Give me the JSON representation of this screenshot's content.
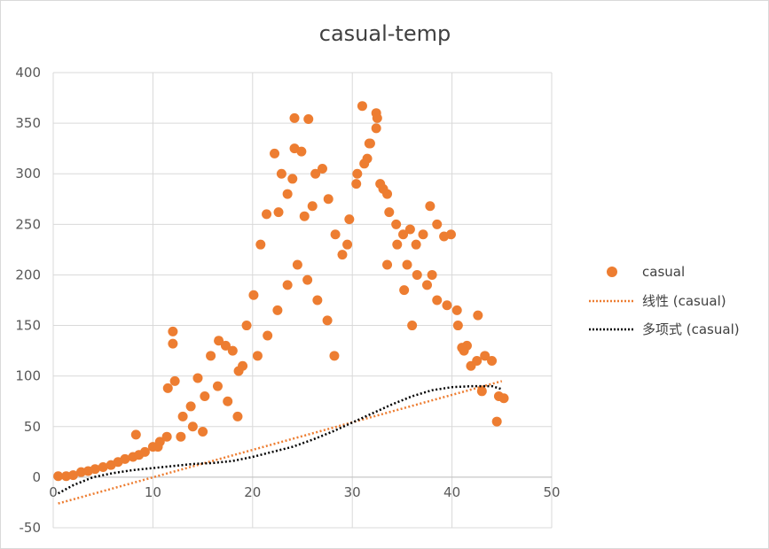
{
  "chart_data": {
    "type": "scatter",
    "title": "casual-temp",
    "xlabel": "",
    "ylabel": "",
    "xlim": [
      0,
      50
    ],
    "ylim": [
      -50,
      400
    ],
    "x_ticks": [
      0,
      10,
      20,
      30,
      40,
      50
    ],
    "y_ticks": [
      -50,
      0,
      50,
      100,
      150,
      200,
      250,
      300,
      350,
      400
    ],
    "x_tick_labels": [
      "0",
      "10",
      "20",
      "30",
      "40",
      "50"
    ],
    "y_tick_labels": [
      "-50",
      "0",
      "50",
      "100",
      "150",
      "200",
      "250",
      "300",
      "350",
      "400"
    ],
    "grid": true,
    "legend_position": "right",
    "series": [
      {
        "name": "casual",
        "kind": "scatter",
        "color": "#ED7D31",
        "x": [
          0.5,
          1.3,
          2.0,
          2.8,
          3.5,
          4.2,
          5.0,
          5.8,
          6.5,
          7.2,
          8.0,
          8.6,
          9.2,
          10.0,
          10.7,
          11.4,
          12.0,
          12.0,
          11.5,
          12.2,
          13.0,
          13.8,
          14.5,
          15.2,
          15.8,
          16.6,
          17.3,
          18.0,
          18.6,
          19.4,
          20.1,
          20.8,
          21.4,
          22.2,
          22.9,
          23.5,
          24.2,
          24.2,
          24.9,
          25.6,
          26.3,
          27.0,
          27.6,
          28.3,
          29.0,
          29.7,
          30.4,
          31.0,
          31.7,
          32.4,
          33.1,
          33.7,
          34.4,
          35.1,
          35.8,
          36.4,
          37.1,
          37.8,
          38.5,
          39.2,
          39.9,
          40.6,
          41.2,
          41.9,
          42.6,
          43.3,
          44.0,
          44.7,
          45.2,
          20.5,
          21.5,
          22.5,
          23.5,
          24.5,
          25.5,
          26.5,
          27.5,
          30.5,
          31.5,
          32.5,
          33.5,
          34.5,
          35.5,
          36.5,
          37.5,
          38.5,
          39.5,
          40.5,
          41.5,
          42.5,
          16.5,
          17.5,
          18.5,
          14.0,
          15.0,
          26.0,
          25.2,
          22.6,
          31.2,
          32.4,
          31.8,
          32.8,
          24.0,
          38.0,
          41.0,
          43.0,
          44.5,
          29.5,
          19.0,
          12.8,
          10.5,
          8.3,
          36.0,
          28.2,
          33.5,
          35.2
        ],
        "y": [
          1,
          1,
          2,
          5,
          6,
          8,
          10,
          12,
          15,
          18,
          20,
          22,
          25,
          30,
          35,
          40,
          144,
          132,
          88,
          95,
          60,
          70,
          98,
          80,
          120,
          135,
          130,
          125,
          105,
          150,
          180,
          230,
          260,
          320,
          300,
          280,
          355,
          325,
          322,
          354,
          300,
          305,
          275,
          240,
          220,
          255,
          290,
          367,
          330,
          360,
          285,
          262,
          250,
          240,
          245,
          230,
          240,
          268,
          250,
          238,
          240,
          150,
          125,
          110,
          160,
          120,
          115,
          80,
          78,
          120,
          140,
          165,
          190,
          210,
          195,
          175,
          155,
          300,
          315,
          355,
          280,
          230,
          210,
          200,
          190,
          175,
          170,
          165,
          130,
          115,
          90,
          75,
          60,
          50,
          45,
          268,
          258,
          262,
          310,
          345,
          330,
          290,
          295,
          200,
          128,
          85,
          55,
          230,
          110,
          40,
          30,
          42,
          150,
          120,
          210,
          185
        ]
      },
      {
        "name": "线性 (casual)",
        "kind": "linear-trend",
        "color": "#ED7D31",
        "x": [
          0.5,
          45.0
        ],
        "y": [
          -26,
          95
        ]
      },
      {
        "name": "多项式 (casual)",
        "kind": "polynomial-trend",
        "color": "#000000",
        "x": [
          0.5,
          2,
          4,
          6,
          8,
          10,
          12,
          14,
          16,
          18,
          20,
          22,
          24,
          26,
          28,
          30,
          32,
          34,
          36,
          38,
          40,
          42,
          44,
          45
        ],
        "y": [
          -16,
          -8,
          0,
          4,
          7,
          9,
          11,
          13,
          14,
          16,
          20,
          25,
          30,
          37,
          45,
          54,
          63,
          72,
          80,
          86,
          89,
          90,
          90,
          87
        ]
      }
    ],
    "legend": [
      {
        "label": "casual",
        "marker": "circle",
        "color": "#ED7D31"
      },
      {
        "label": "线性 (casual)",
        "marker": "dotted-line",
        "color": "#ED7D31"
      },
      {
        "label": "多项式 (casual)",
        "marker": "dotted-line",
        "color": "#000000"
      }
    ]
  },
  "colors": {
    "grid": "#d9d9d9",
    "axis": "#bfbfbf",
    "text": "#595959"
  }
}
